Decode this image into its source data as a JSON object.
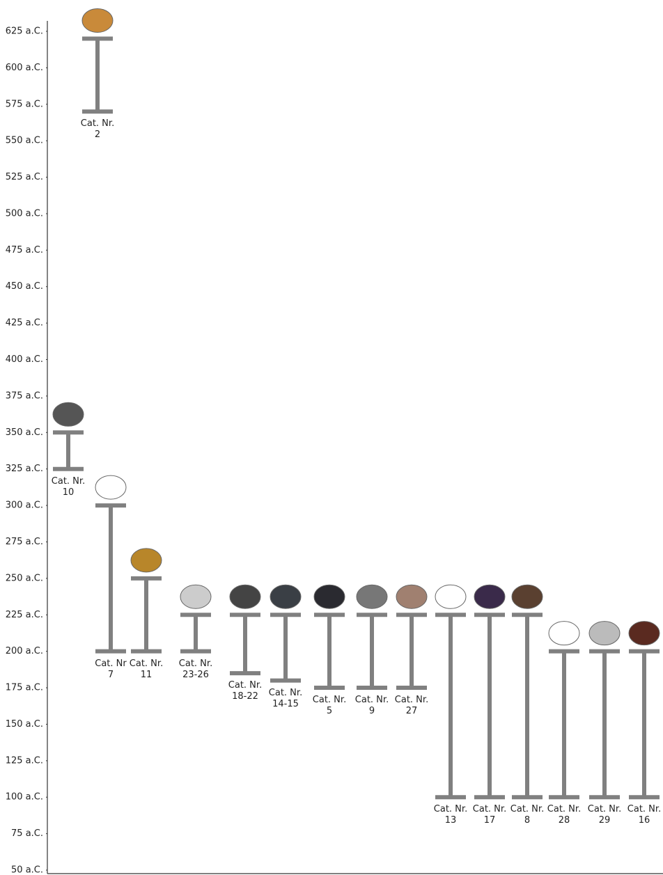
{
  "chart_data": {
    "type": "range",
    "categories": [
      "Cat. Nr. 10",
      "Cat. Nr. 2",
      "Cat. Nr 7",
      "Cat. Nr. 11",
      "Cat. Nr. 23-26",
      "Cat. Nr. 18-22",
      "Cat. Nr. 14-15",
      "Cat. Nr. 5",
      "Cat. Nr. 9",
      "Cat. Nr. 27",
      "Cat. Nr. 13",
      "Cat. Nr. 17",
      "Cat. Nr. 8",
      "Cat. Nr. 28",
      "Cat. Nr. 29",
      "Cat. Nr. 16"
    ],
    "ranges": [
      [
        350,
        325
      ],
      [
        620,
        570
      ],
      [
        300,
        200
      ],
      [
        250,
        200
      ],
      [
        225,
        200
      ],
      [
        225,
        185
      ],
      [
        225,
        180
      ],
      [
        225,
        175
      ],
      [
        225,
        175
      ],
      [
        225,
        175
      ],
      [
        225,
        100
      ],
      [
        225,
        100
      ],
      [
        225,
        100
      ],
      [
        200,
        100
      ],
      [
        200,
        100
      ],
      [
        200,
        100
      ]
    ],
    "color": "#808080",
    "ylim": [
      50,
      625
    ],
    "yticks": [
      {
        "value": 625,
        "label": "625 a.C."
      },
      {
        "value": 600,
        "label": "600 a.C."
      },
      {
        "value": 575,
        "label": "575 a.C."
      },
      {
        "value": 550,
        "label": "550 a.C."
      },
      {
        "value": 525,
        "label": "525 a.C."
      },
      {
        "value": 500,
        "label": "500 a.C."
      },
      {
        "value": 475,
        "label": "475 a.C."
      },
      {
        "value": 450,
        "label": "450 a.C."
      },
      {
        "value": 425,
        "label": "425 a.C."
      },
      {
        "value": 400,
        "label": "400 a.C."
      },
      {
        "value": 375,
        "label": "375 a.C."
      },
      {
        "value": 350,
        "label": "350 a.C."
      },
      {
        "value": 325,
        "label": "325 a.C."
      },
      {
        "value": 300,
        "label": "300 a.C."
      },
      {
        "value": 275,
        "label": "275 a.C."
      },
      {
        "value": 250,
        "label": "250 a.C."
      },
      {
        "value": 225,
        "label": "225 a.C."
      },
      {
        "value": 200,
        "label": "200 a.C."
      },
      {
        "value": 175,
        "label": "175 a.C."
      },
      {
        "value": 150,
        "label": "150 a.C."
      },
      {
        "value": 125,
        "label": "125 a.C."
      },
      {
        "value": 100,
        "label": "100 a.C."
      },
      {
        "value": 75,
        "label": "75 a.C."
      },
      {
        "value": 50,
        "label": "50 a.C."
      }
    ]
  }
}
